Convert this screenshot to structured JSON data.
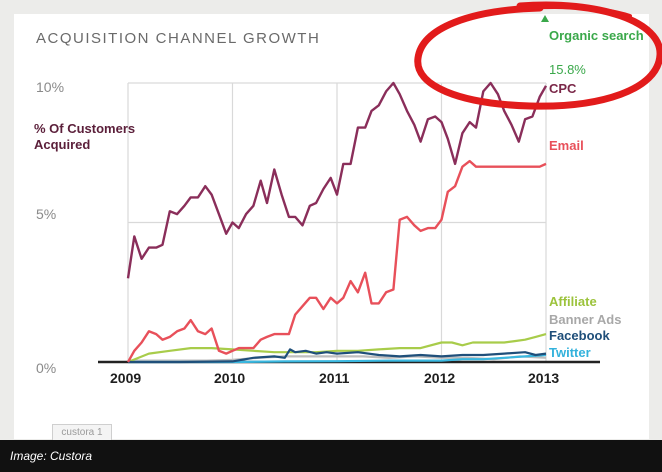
{
  "title": "ACQUISITION CHANNEL GROWTH",
  "ylabel": "% Of Customers Acquired",
  "caption": "Image: Custora",
  "badge": "custora 1",
  "chart_data": {
    "type": "line",
    "title": "ACQUISITION CHANNEL GROWTH",
    "ylabel": "% Of Customers Acquired",
    "xlabel": "",
    "x_range": [
      2009,
      2013
    ],
    "ylim": [
      0,
      10
    ],
    "y_ticks": [
      {
        "value": 0,
        "label": "0%"
      },
      {
        "value": 5,
        "label": "5%"
      },
      {
        "value": 10,
        "label": "10%"
      }
    ],
    "x_ticks": [
      {
        "value": 2009,
        "label": "2009"
      },
      {
        "value": 2010,
        "label": "2010"
      },
      {
        "value": 2011,
        "label": "2011"
      },
      {
        "value": 2012,
        "label": "2012"
      },
      {
        "value": 2013,
        "label": "2013"
      }
    ],
    "annotation": {
      "label": "Organic search",
      "value_text": "15.8%",
      "color": "#3aa84a",
      "marker": "up-triangle"
    },
    "series": [
      {
        "name": "CPC",
        "label": "CPC",
        "color": "#8a2e5a",
        "label_color": "#7a2748",
        "x": [
          2009.0,
          2009.06,
          2009.13,
          2009.2,
          2009.27,
          2009.33,
          2009.4,
          2009.47,
          2009.54,
          2009.6,
          2009.67,
          2009.74,
          2009.8,
          2009.87,
          2009.94,
          2010.0,
          2010.06,
          2010.13,
          2010.2,
          2010.27,
          2010.33,
          2010.4,
          2010.47,
          2010.54,
          2010.6,
          2010.67,
          2010.74,
          2010.8,
          2010.87,
          2010.94,
          2011.0,
          2011.06,
          2011.13,
          2011.2,
          2011.27,
          2011.33,
          2011.4,
          2011.47,
          2011.54,
          2011.6,
          2011.67,
          2011.74,
          2011.8,
          2011.87,
          2011.94,
          2012.0,
          2012.06,
          2012.13,
          2012.2,
          2012.27,
          2012.33,
          2012.4,
          2012.47,
          2012.54,
          2012.6,
          2012.67,
          2012.74,
          2012.8,
          2012.87,
          2012.94,
          2013.0
        ],
        "values": [
          3.0,
          4.5,
          3.7,
          4.1,
          4.1,
          4.2,
          5.4,
          5.3,
          5.6,
          5.9,
          5.9,
          6.3,
          6.0,
          5.3,
          4.6,
          5.0,
          4.8,
          5.3,
          5.6,
          6.5,
          5.7,
          6.9,
          6.0,
          5.2,
          5.2,
          4.9,
          5.6,
          5.7,
          6.2,
          6.6,
          6.0,
          7.1,
          7.1,
          8.4,
          8.4,
          9.0,
          9.2,
          9.7,
          10.0,
          9.6,
          9.0,
          8.5,
          7.9,
          8.7,
          8.8,
          8.6,
          8.0,
          7.1,
          8.2,
          8.6,
          8.4,
          9.7,
          10.0,
          9.6,
          9.0,
          8.5,
          7.9,
          8.7,
          8.8,
          9.5,
          9.9
        ]
      },
      {
        "name": "Email",
        "label": "Email",
        "color": "#e8505a",
        "label_color": "#e8505a",
        "x": [
          2009.0,
          2009.06,
          2009.13,
          2009.2,
          2009.27,
          2009.33,
          2009.4,
          2009.47,
          2009.54,
          2009.6,
          2009.67,
          2009.74,
          2009.8,
          2009.87,
          2009.94,
          2010.0,
          2010.06,
          2010.13,
          2010.2,
          2010.27,
          2010.33,
          2010.4,
          2010.47,
          2010.54,
          2010.6,
          2010.67,
          2010.74,
          2010.8,
          2010.87,
          2010.94,
          2011.0,
          2011.06,
          2011.13,
          2011.2,
          2011.27,
          2011.33,
          2011.4,
          2011.47,
          2011.54,
          2011.6,
          2011.67,
          2011.74,
          2011.8,
          2011.87,
          2011.94,
          2012.0,
          2012.06,
          2012.13,
          2012.2,
          2012.27,
          2012.33,
          2012.4,
          2012.47,
          2012.54,
          2012.6,
          2012.67,
          2012.74,
          2012.8,
          2012.87,
          2012.94,
          2013.0
        ],
        "values": [
          0.0,
          0.4,
          0.7,
          1.1,
          1.0,
          0.8,
          0.9,
          1.1,
          1.2,
          1.5,
          1.1,
          1.0,
          1.2,
          0.4,
          0.3,
          0.4,
          0.5,
          0.5,
          0.5,
          0.8,
          0.9,
          1.0,
          1.0,
          1.0,
          1.7,
          2.0,
          2.3,
          2.3,
          1.9,
          2.3,
          2.1,
          2.3,
          2.9,
          2.5,
          3.2,
          2.1,
          2.1,
          2.5,
          2.6,
          5.1,
          5.2,
          4.9,
          4.7,
          4.8,
          4.8,
          5.1,
          6.1,
          6.3,
          7.0,
          7.2,
          7.0,
          7.0,
          7.0,
          7.0,
          7.0,
          7.0,
          7.0,
          7.0,
          7.0,
          7.0,
          7.1
        ]
      },
      {
        "name": "Affiliate",
        "label": "Affiliate",
        "color": "#a8cc4a",
        "label_color": "#9cc33c",
        "x": [
          2009.0,
          2009.2,
          2009.4,
          2009.6,
          2009.8,
          2010.0,
          2010.2,
          2010.4,
          2010.6,
          2010.8,
          2011.0,
          2011.2,
          2011.4,
          2011.6,
          2011.8,
          2012.0,
          2012.1,
          2012.2,
          2012.3,
          2012.4,
          2012.5,
          2012.6,
          2012.7,
          2012.8,
          2012.9,
          2013.0
        ],
        "values": [
          0.0,
          0.3,
          0.4,
          0.5,
          0.5,
          0.45,
          0.4,
          0.35,
          0.35,
          0.35,
          0.4,
          0.4,
          0.45,
          0.5,
          0.5,
          0.7,
          0.7,
          0.6,
          0.7,
          0.7,
          0.7,
          0.7,
          0.75,
          0.8,
          0.9,
          1.0
        ]
      },
      {
        "name": "Banner Ads",
        "label": "Banner Ads",
        "color": "#bdbdbd",
        "label_color": "#a8a8a8",
        "x": [
          2009.0,
          2009.25,
          2009.5,
          2009.75,
          2010.0,
          2010.25,
          2010.5,
          2010.75,
          2011.0,
          2011.25,
          2011.5,
          2011.75,
          2012.0,
          2012.25,
          2012.5,
          2012.75,
          2013.0
        ],
        "values": [
          0.05,
          0.05,
          0.05,
          0.05,
          0.08,
          0.15,
          0.2,
          0.2,
          0.2,
          0.2,
          0.15,
          0.2,
          0.15,
          0.15,
          0.1,
          0.2,
          0.15
        ]
      },
      {
        "name": "Facebook",
        "label": "Facebook",
        "color": "#1f4f7a",
        "label_color": "#1e4e79",
        "x": [
          2009.0,
          2009.5,
          2010.0,
          2010.2,
          2010.4,
          2010.5,
          2010.55,
          2010.6,
          2010.7,
          2010.8,
          2010.9,
          2011.0,
          2011.2,
          2011.4,
          2011.6,
          2011.8,
          2012.0,
          2012.2,
          2012.4,
          2012.6,
          2012.8,
          2012.9,
          2013.0
        ],
        "values": [
          0.0,
          0.0,
          0.02,
          0.15,
          0.2,
          0.15,
          0.45,
          0.35,
          0.4,
          0.3,
          0.35,
          0.3,
          0.35,
          0.25,
          0.2,
          0.25,
          0.2,
          0.25,
          0.25,
          0.3,
          0.35,
          0.25,
          0.3
        ]
      },
      {
        "name": "Twitter",
        "label": "Twitter",
        "color": "#3ab8e0",
        "label_color": "#33b2dc",
        "x": [
          2009.0,
          2009.5,
          2010.0,
          2010.5,
          2011.0,
          2011.5,
          2012.0,
          2012.2,
          2012.4,
          2012.6,
          2012.8,
          2013.0
        ],
        "values": [
          0.0,
          0.0,
          0.0,
          0.02,
          0.03,
          0.05,
          0.05,
          0.1,
          0.1,
          0.15,
          0.2,
          0.25
        ]
      }
    ]
  }
}
